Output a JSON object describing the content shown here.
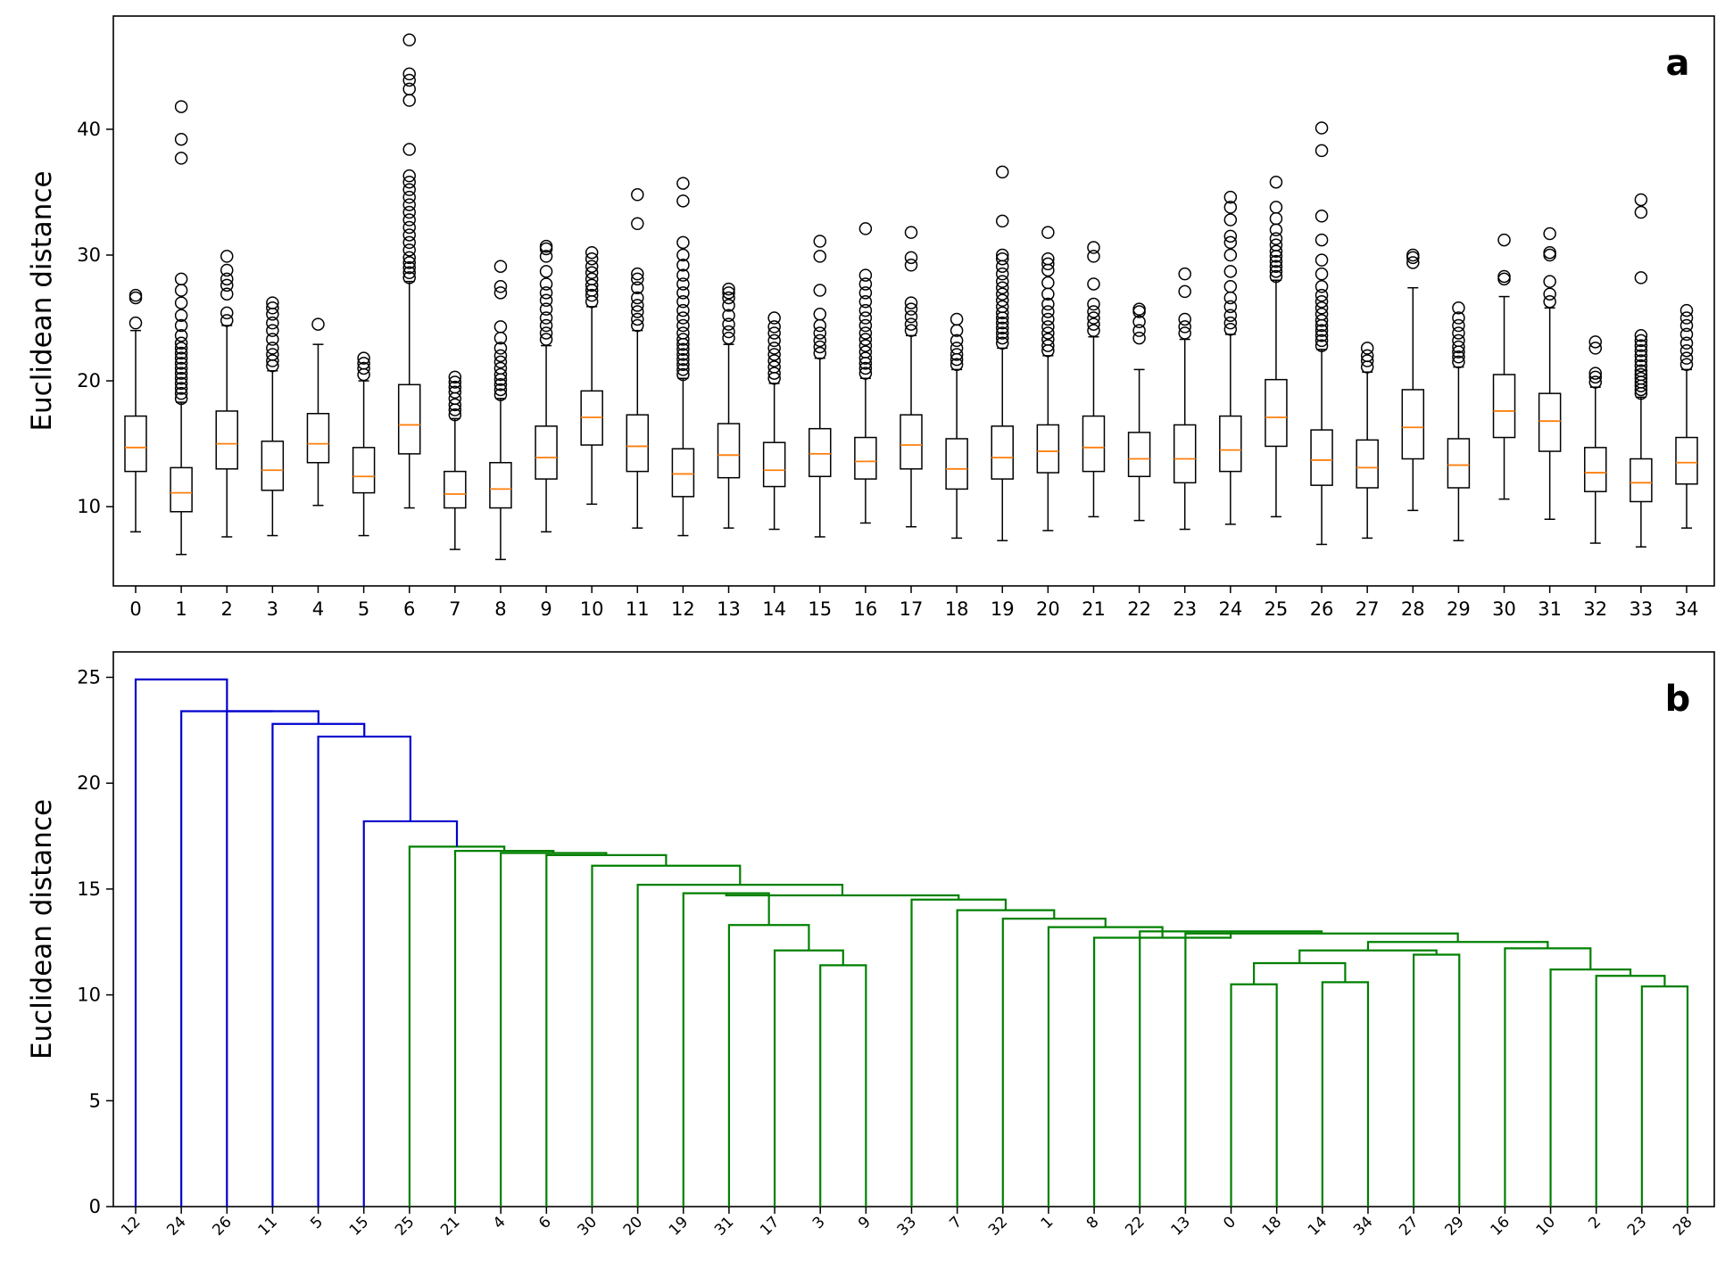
{
  "chart_data": [
    {
      "type": "boxplot",
      "panel_label": "a",
      "ylabel": "Euclidean distance",
      "xlabel": "",
      "ylim": [
        3.7,
        49
      ],
      "yticks": [
        10,
        20,
        30,
        40
      ],
      "ytick_labels": [
        "10",
        "20",
        "30",
        "40"
      ],
      "grid": false,
      "categories": [
        "0",
        "1",
        "2",
        "3",
        "4",
        "5",
        "6",
        "7",
        "8",
        "9",
        "10",
        "11",
        "12",
        "13",
        "14",
        "15",
        "16",
        "17",
        "18",
        "19",
        "20",
        "21",
        "22",
        "23",
        "24",
        "25",
        "26",
        "27",
        "28",
        "29",
        "30",
        "31",
        "32",
        "33",
        "34"
      ],
      "boxes": [
        {
          "whislo": 8.0,
          "q1": 12.8,
          "med": 14.7,
          "q3": 17.2,
          "whishi": 24.0,
          "fliers": [
            24.6,
            26.6,
            26.8
          ]
        },
        {
          "whislo": 6.2,
          "q1": 9.6,
          "med": 11.1,
          "q3": 13.1,
          "whishi": 18.3,
          "fliers": [
            18.6,
            19.0,
            19.4,
            19.8,
            20.2,
            20.6,
            21.0,
            21.4,
            21.8,
            22.2,
            22.6,
            23.0,
            23.6,
            24.4,
            25.2,
            26.2,
            27.2,
            28.1,
            37.7,
            39.2,
            41.8
          ]
        },
        {
          "whislo": 7.6,
          "q1": 13.0,
          "med": 15.0,
          "q3": 17.6,
          "whishi": 24.4,
          "fliers": [
            24.8,
            25.4,
            26.9,
            27.6,
            28.1,
            28.8,
            29.9
          ]
        },
        {
          "whislo": 7.7,
          "q1": 11.3,
          "med": 12.9,
          "q3": 15.2,
          "whishi": 20.8,
          "fliers": [
            21.2,
            21.6,
            22.1,
            22.6,
            23.3,
            24.0,
            24.6,
            25.3,
            25.8,
            26.2
          ]
        },
        {
          "whislo": 10.1,
          "q1": 13.5,
          "med": 15.0,
          "q3": 17.4,
          "whishi": 22.9,
          "fliers": [
            24.5
          ]
        },
        {
          "whislo": 7.7,
          "q1": 11.1,
          "med": 12.4,
          "q3": 14.7,
          "whishi": 20.0,
          "fliers": [
            20.5,
            21.0,
            21.4,
            21.8
          ]
        },
        {
          "whislo": 9.9,
          "q1": 14.2,
          "med": 16.5,
          "q3": 19.7,
          "whishi": 27.9,
          "fliers": [
            28.2,
            28.6,
            29.0,
            29.4,
            29.8,
            30.4,
            31.0,
            31.6,
            32.2,
            32.8,
            33.4,
            34.0,
            34.6,
            35.2,
            35.8,
            36.3,
            38.4,
            42.3,
            43.2,
            43.9,
            44.4,
            47.1
          ]
        },
        {
          "whislo": 6.6,
          "q1": 9.9,
          "med": 11.0,
          "q3": 12.8,
          "whishi": 17.0,
          "fliers": [
            17.3,
            17.7,
            18.1,
            18.6,
            19.1,
            19.5,
            19.9,
            20.3
          ]
        },
        {
          "whislo": 5.8,
          "q1": 9.9,
          "med": 11.4,
          "q3": 13.5,
          "whishi": 18.6,
          "fliers": [
            18.9,
            19.3,
            19.7,
            20.1,
            20.5,
            21.0,
            21.5,
            22.0,
            22.6,
            23.4,
            24.3,
            27.0,
            27.5,
            29.1
          ]
        },
        {
          "whislo": 8.0,
          "q1": 12.2,
          "med": 13.9,
          "q3": 16.4,
          "whishi": 22.8,
          "fliers": [
            23.3,
            23.8,
            24.4,
            25.0,
            25.7,
            26.4,
            27.0,
            27.7,
            28.7,
            29.9,
            30.5,
            30.7
          ]
        },
        {
          "whislo": 10.2,
          "q1": 14.9,
          "med": 17.1,
          "q3": 19.2,
          "whishi": 25.9,
          "fliers": [
            26.3,
            26.8,
            27.2,
            27.6,
            28.1,
            28.6,
            29.1,
            29.7,
            30.2
          ]
        },
        {
          "whislo": 8.3,
          "q1": 12.8,
          "med": 14.8,
          "q3": 17.3,
          "whishi": 24.0,
          "fliers": [
            24.4,
            24.9,
            25.5,
            26.0,
            26.6,
            27.4,
            28.1,
            28.5,
            32.5,
            34.8
          ]
        },
        {
          "whislo": 7.7,
          "q1": 10.8,
          "med": 12.6,
          "q3": 14.6,
          "whishi": 20.2,
          "fliers": [
            20.5,
            20.9,
            21.3,
            21.7,
            22.1,
            22.5,
            22.9,
            23.3,
            23.8,
            24.4,
            25.0,
            25.6,
            26.3,
            27.0,
            27.7,
            28.4,
            29.2,
            30.0,
            31.0,
            34.3,
            35.7
          ]
        },
        {
          "whislo": 8.3,
          "q1": 12.3,
          "med": 14.1,
          "q3": 16.6,
          "whishi": 22.9,
          "fliers": [
            23.4,
            23.9,
            24.5,
            25.2,
            26.0,
            26.6,
            27.0,
            27.3
          ]
        },
        {
          "whislo": 8.2,
          "q1": 11.6,
          "med": 12.9,
          "q3": 15.1,
          "whishi": 19.8,
          "fliers": [
            20.2,
            20.6,
            21.1,
            21.6,
            22.1,
            22.6,
            23.2,
            23.8,
            24.3,
            25.0
          ]
        },
        {
          "whislo": 7.6,
          "q1": 12.4,
          "med": 14.2,
          "q3": 16.2,
          "whishi": 21.8,
          "fliers": [
            22.2,
            22.7,
            23.2,
            23.8,
            24.4,
            25.3,
            27.2,
            29.9,
            31.1
          ]
        },
        {
          "whislo": 8.7,
          "q1": 12.2,
          "med": 13.6,
          "q3": 15.5,
          "whishi": 20.2,
          "fliers": [
            20.6,
            21.0,
            21.4,
            21.8,
            22.3,
            22.8,
            23.3,
            23.8,
            24.4,
            25.0,
            25.6,
            26.3,
            27.0,
            27.7,
            28.4,
            32.1
          ]
        },
        {
          "whislo": 8.4,
          "q1": 13.0,
          "med": 14.9,
          "q3": 17.3,
          "whishi": 23.6,
          "fliers": [
            24.0,
            24.5,
            25.1,
            25.7,
            26.2,
            29.2,
            29.8,
            31.8
          ]
        },
        {
          "whislo": 7.5,
          "q1": 11.4,
          "med": 13.0,
          "q3": 15.4,
          "whishi": 20.9,
          "fliers": [
            21.3,
            21.7,
            22.1,
            22.6,
            23.2,
            24.0,
            24.9
          ]
        },
        {
          "whislo": 7.3,
          "q1": 12.2,
          "med": 13.9,
          "q3": 16.4,
          "whishi": 22.6,
          "fliers": [
            23.0,
            23.4,
            23.8,
            24.2,
            24.6,
            25.0,
            25.4,
            25.9,
            26.4,
            26.9,
            27.4,
            27.9,
            28.5,
            29.1,
            29.7,
            30.0,
            32.7,
            36.6
          ]
        },
        {
          "whislo": 8.1,
          "q1": 12.7,
          "med": 14.4,
          "q3": 16.5,
          "whishi": 22.0,
          "fliers": [
            22.4,
            22.8,
            23.3,
            23.8,
            24.3,
            24.9,
            25.5,
            26.1,
            26.9,
            27.8,
            28.8,
            29.3,
            29.7,
            31.8
          ]
        },
        {
          "whislo": 9.2,
          "q1": 12.8,
          "med": 14.7,
          "q3": 17.2,
          "whishi": 23.5,
          "fliers": [
            24.0,
            24.5,
            25.0,
            25.5,
            26.1,
            27.7,
            29.9,
            30.6
          ]
        },
        {
          "whislo": 8.9,
          "q1": 12.4,
          "med": 13.8,
          "q3": 15.9,
          "whishi": 20.9,
          "fliers": [
            23.4,
            24.0,
            24.7,
            25.5,
            25.7
          ]
        },
        {
          "whislo": 8.2,
          "q1": 11.9,
          "med": 13.8,
          "q3": 16.5,
          "whishi": 23.3,
          "fliers": [
            23.8,
            24.3,
            24.9,
            27.1,
            28.5
          ]
        },
        {
          "whislo": 8.6,
          "q1": 12.8,
          "med": 14.5,
          "q3": 17.2,
          "whishi": 23.7,
          "fliers": [
            24.1,
            24.6,
            25.2,
            25.9,
            26.6,
            27.5,
            28.7,
            30.0,
            31.0,
            31.5,
            32.8,
            33.8,
            34.6
          ]
        },
        {
          "whislo": 9.2,
          "q1": 14.8,
          "med": 17.1,
          "q3": 20.1,
          "whishi": 28.0,
          "fliers": [
            28.3,
            28.7,
            29.1,
            29.5,
            29.9,
            30.3,
            30.8,
            31.3,
            32.0,
            32.9,
            33.8,
            35.8
          ]
        },
        {
          "whislo": 7.0,
          "q1": 11.7,
          "med": 13.7,
          "q3": 16.1,
          "whishi": 22.5,
          "fliers": [
            22.8,
            23.2,
            23.6,
            24.0,
            24.4,
            24.8,
            25.3,
            25.8,
            26.3,
            26.8,
            27.5,
            28.5,
            29.6,
            31.2,
            33.1,
            38.3,
            40.1
          ]
        },
        {
          "whislo": 7.5,
          "q1": 11.5,
          "med": 13.1,
          "q3": 15.3,
          "whishi": 20.7,
          "fliers": [
            21.1,
            21.6,
            22.0,
            22.6
          ]
        },
        {
          "whislo": 9.7,
          "q1": 13.8,
          "med": 16.3,
          "q3": 19.3,
          "whishi": 27.4,
          "fliers": [
            29.4,
            29.8,
            30.0
          ]
        },
        {
          "whislo": 7.3,
          "q1": 11.5,
          "med": 13.3,
          "q3": 15.4,
          "whishi": 21.1,
          "fliers": [
            21.5,
            21.9,
            22.3,
            22.7,
            23.2,
            23.8,
            24.4,
            25.0,
            25.8
          ]
        },
        {
          "whislo": 10.6,
          "q1": 15.5,
          "med": 17.6,
          "q3": 20.5,
          "whishi": 26.7,
          "fliers": [
            28.1,
            28.3,
            31.2
          ]
        },
        {
          "whislo": 9.0,
          "q1": 14.4,
          "med": 16.8,
          "q3": 19.0,
          "whishi": 25.8,
          "fliers": [
            26.3,
            26.9,
            27.9,
            30.0,
            30.2,
            31.7
          ]
        },
        {
          "whislo": 7.1,
          "q1": 11.2,
          "med": 12.7,
          "q3": 14.7,
          "whishi": 19.5,
          "fliers": [
            19.9,
            20.3,
            20.6,
            22.6,
            23.1
          ]
        },
        {
          "whislo": 6.8,
          "q1": 10.4,
          "med": 11.9,
          "q3": 13.8,
          "whishi": 18.7,
          "fliers": [
            19.0,
            19.3,
            19.6,
            19.9,
            20.2,
            20.5,
            20.8,
            21.2,
            21.6,
            22.0,
            22.4,
            22.8,
            23.2,
            23.6,
            28.2,
            33.4,
            34.4
          ]
        },
        {
          "whislo": 8.3,
          "q1": 11.8,
          "med": 13.5,
          "q3": 15.5,
          "whishi": 20.9,
          "fliers": [
            21.3,
            21.8,
            22.4,
            23.0,
            23.7,
            24.4,
            25.0,
            25.6
          ]
        }
      ]
    },
    {
      "type": "dendrogram",
      "panel_label": "b",
      "ylabel": "Euclidean distance",
      "xlabel": "",
      "ylim": [
        0,
        26.2
      ],
      "yticks": [
        0,
        5,
        10,
        15,
        20,
        25
      ],
      "ytick_labels": [
        "0",
        "5",
        "10",
        "15",
        "20",
        "25"
      ],
      "grid": false,
      "leaf_order": [
        "12",
        "24",
        "26",
        "11",
        "5",
        "15",
        "25",
        "21",
        "4",
        "6",
        "30",
        "20",
        "19",
        "31",
        "17",
        "3",
        "9",
        "33",
        "7",
        "32",
        "1",
        "8",
        "22",
        "13",
        "0",
        "18",
        "14",
        "34",
        "27",
        "29",
        "16",
        "10",
        "2",
        "23",
        "28"
      ],
      "above_threshold_color": "#0000cd",
      "cluster_color": "#008000",
      "links": [
        [
          "3",
          "9",
          11.4
        ],
        [
          "17",
          "3,9",
          12.1
        ],
        [
          "31",
          "17,3,9",
          13.3
        ],
        [
          "19",
          "31,17,3,9",
          14.8
        ],
        [
          "0",
          "18",
          10.5
        ],
        [
          "14",
          "34",
          10.6
        ],
        [
          "0,18",
          "14,34",
          11.5
        ],
        [
          "27",
          "29",
          11.9
        ],
        [
          "0,18,14,34",
          "27,29",
          12.1
        ],
        [
          "23",
          "28",
          10.4
        ],
        [
          "2",
          "23,28",
          10.9
        ],
        [
          "10",
          "2,23,28",
          11.2
        ],
        [
          "16",
          "10,2,23,28",
          12.2
        ],
        [
          "0..29",
          "16..28",
          12.5
        ],
        [
          "13",
          "0..28",
          12.9
        ],
        [
          "22",
          "13..28",
          13.0
        ],
        [
          "8",
          "22..28",
          12.7
        ],
        [
          "1",
          "8..28",
          13.2
        ],
        [
          "32",
          "1..28",
          13.6
        ],
        [
          "7",
          "32..28",
          14.0
        ],
        [
          "33",
          "7..28",
          14.5
        ],
        [
          "19..9",
          "33..28",
          14.7
        ],
        [
          "20",
          "19..28",
          15.2
        ],
        [
          "30",
          "20..28",
          16.1
        ],
        [
          "6",
          "30..28",
          16.6
        ],
        [
          "4",
          "6..28",
          16.7
        ],
        [
          "21",
          "4..28",
          16.8
        ],
        [
          "25",
          "21..28",
          17.0
        ],
        [
          "15",
          "25..28",
          18.2
        ],
        [
          "5",
          "15..28",
          22.2
        ],
        [
          "11",
          "5..28",
          22.8
        ],
        [
          "26",
          "11..28",
          23.4
        ],
        [
          "24",
          "26..28",
          23.4
        ],
        [
          "12",
          "24..28",
          24.9
        ]
      ]
    }
  ],
  "colors": {
    "median": "#ff7f0e",
    "box": "#000000",
    "dendro_blue": "#0000cd",
    "dendro_green": "#008000"
  }
}
